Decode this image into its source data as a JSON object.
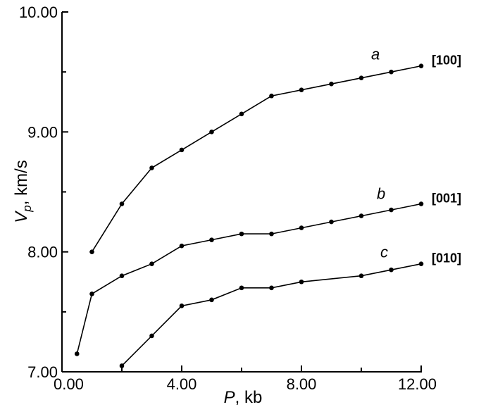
{
  "chart_data": {
    "type": "line",
    "title": "",
    "xlabel": {
      "symbol": "P",
      "unit": ", kb"
    },
    "ylabel": {
      "symbol": "V",
      "subscript": "p",
      "unit": ", km/s"
    },
    "xlim": [
      0,
      12
    ],
    "ylim": [
      7,
      10
    ],
    "x_ticks": [
      {
        "value": 0,
        "label": "0.00"
      },
      {
        "value": 4,
        "label": "4.00"
      },
      {
        "value": 8,
        "label": "8.00"
      },
      {
        "value": 12,
        "label": "12.00"
      }
    ],
    "y_ticks": [
      {
        "value": 7,
        "label": "7.00"
      },
      {
        "value": 8,
        "label": "8.00"
      },
      {
        "value": 9,
        "label": "9.00"
      },
      {
        "value": 10,
        "label": "10.00"
      }
    ],
    "grid": false,
    "series": [
      {
        "letter": "a",
        "direction": "[100]",
        "x": [
          1,
          2,
          3,
          4,
          5,
          6,
          7,
          8,
          9,
          10,
          11,
          12
        ],
        "y": [
          8.0,
          8.4,
          8.7,
          8.85,
          9.0,
          9.15,
          9.3,
          9.35,
          9.4,
          9.45,
          9.5,
          9.55
        ]
      },
      {
        "letter": "b",
        "direction": "[001]",
        "x": [
          0.5,
          1,
          2,
          3,
          4,
          5,
          6,
          7,
          8,
          9,
          10,
          11,
          12
        ],
        "y": [
          7.15,
          7.65,
          7.8,
          7.9,
          8.05,
          8.1,
          8.15,
          8.15,
          8.2,
          8.25,
          8.3,
          8.35,
          8.4
        ]
      },
      {
        "letter": "c",
        "direction": "[010]",
        "x": [
          2,
          3,
          4,
          5,
          6,
          7,
          8,
          10,
          11,
          12
        ],
        "y": [
          7.05,
          7.3,
          7.55,
          7.6,
          7.7,
          7.7,
          7.75,
          7.8,
          7.85,
          7.9
        ]
      }
    ]
  }
}
